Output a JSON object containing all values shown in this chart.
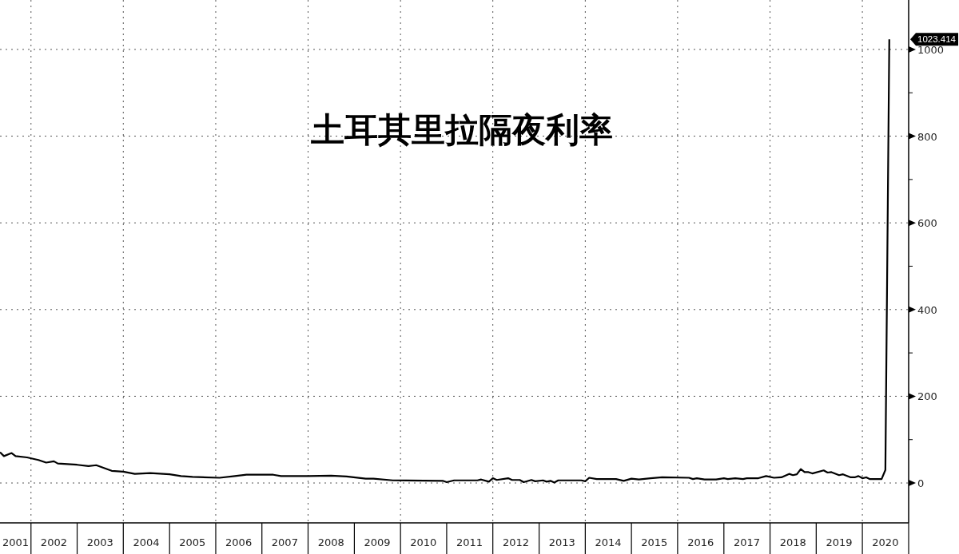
{
  "chart_data": {
    "type": "line",
    "title": "土耳其里拉隔夜利率",
    "x": [
      "2001-05",
      "2001-06",
      "2001-08",
      "2001-09",
      "2001-12",
      "2002-03",
      "2002-05",
      "2002-07",
      "2002-08",
      "2003-01",
      "2003-04",
      "2003-06",
      "2003-10",
      "2004-01",
      "2004-04",
      "2004-08",
      "2005-01",
      "2005-04",
      "2005-07",
      "2006-02",
      "2006-06",
      "2006-09",
      "2007-04",
      "2007-06",
      "2008-01",
      "2008-07",
      "2008-11",
      "2009-04",
      "2009-06",
      "2009-11",
      "2010-12",
      "2011-01",
      "2011-03",
      "2011-09",
      "2011-10",
      "2011-12",
      "2012-01",
      "2012-02",
      "2012-05",
      "2012-06",
      "2012-08",
      "2012-09",
      "2012-11",
      "2012-12",
      "2013-02",
      "2013-03",
      "2013-04",
      "2013-05",
      "2013-06",
      "2013-12",
      "2014-01",
      "2014-02",
      "2014-04",
      "2014-09",
      "2014-11",
      "2015-01",
      "2015-03",
      "2015-06",
      "2015-09",
      "2016-04",
      "2016-05",
      "2016-06",
      "2016-08",
      "2016-11",
      "2017-01",
      "2017-02",
      "2017-04",
      "2017-06",
      "2017-07",
      "2017-10",
      "2017-12",
      "2018-02",
      "2018-04",
      "2018-06",
      "2018-07",
      "2018-08",
      "2018-09",
      "2018-10",
      "2018-11",
      "2018-12",
      "2019-03",
      "2019-04",
      "2019-05",
      "2019-07",
      "2019-08",
      "2019-10",
      "2019-11",
      "2019-12",
      "2020-01",
      "2020-02",
      "2020-03",
      "2020-06",
      "2020-07",
      "2020-08"
    ],
    "series": [
      {
        "color": "#000000",
        "values": [
          71,
          62,
          69,
          62,
          59,
          53,
          47,
          50,
          45,
          42,
          39,
          41,
          28,
          26,
          21,
          23,
          20,
          16,
          14,
          12,
          16,
          19,
          19,
          16,
          16,
          17,
          15,
          10,
          10,
          6,
          5,
          2,
          6,
          6,
          8,
          3,
          11,
          7,
          11,
          7,
          7,
          2,
          7,
          4,
          6,
          3,
          5,
          1,
          6,
          6,
          4,
          12,
          9,
          9,
          5,
          10,
          8,
          11,
          13,
          12,
          9,
          11,
          8,
          8,
          11,
          9,
          11,
          9,
          11,
          11,
          16,
          12,
          13,
          21,
          18,
          20,
          32,
          25,
          25,
          22,
          29,
          24,
          25,
          18,
          20,
          13,
          13,
          16,
          11,
          13,
          9,
          9,
          30,
          1023.414
        ]
      }
    ],
    "annotations": [
      "1023.414"
    ],
    "xlim": [
      "2001-05",
      "2021-01"
    ],
    "xticks": [
      {
        "value": "2001-08",
        "label": "2001"
      },
      {
        "value": "2002-01",
        "label": null
      },
      {
        "value": "2002-07",
        "label": "2002"
      },
      {
        "value": "2003-01",
        "label": null
      },
      {
        "value": "2003-07",
        "label": "2003"
      },
      {
        "value": "2004-01",
        "label": null
      },
      {
        "value": "2004-07",
        "label": "2004"
      },
      {
        "value": "2005-01",
        "label": null
      },
      {
        "value": "2005-07",
        "label": "2005"
      },
      {
        "value": "2006-01",
        "label": null
      },
      {
        "value": "2006-07",
        "label": "2006"
      },
      {
        "value": "2007-01",
        "label": null
      },
      {
        "value": "2007-07",
        "label": "2007"
      },
      {
        "value": "2008-01",
        "label": null
      },
      {
        "value": "2008-07",
        "label": "2008"
      },
      {
        "value": "2009-01",
        "label": null
      },
      {
        "value": "2009-07",
        "label": "2009"
      },
      {
        "value": "2010-01",
        "label": null
      },
      {
        "value": "2010-07",
        "label": "2010"
      },
      {
        "value": "2011-01",
        "label": null
      },
      {
        "value": "2011-07",
        "label": "2011"
      },
      {
        "value": "2012-01",
        "label": null
      },
      {
        "value": "2012-07",
        "label": "2012"
      },
      {
        "value": "2013-01",
        "label": null
      },
      {
        "value": "2013-07",
        "label": "2013"
      },
      {
        "value": "2014-01",
        "label": null
      },
      {
        "value": "2014-07",
        "label": "2014"
      },
      {
        "value": "2015-01",
        "label": null
      },
      {
        "value": "2015-07",
        "label": "2015"
      },
      {
        "value": "2016-01",
        "label": null
      },
      {
        "value": "2016-07",
        "label": "2016"
      },
      {
        "value": "2017-01",
        "label": null
      },
      {
        "value": "2017-07",
        "label": "2017"
      },
      {
        "value": "2018-01",
        "label": null
      },
      {
        "value": "2018-07",
        "label": "2018"
      },
      {
        "value": "2019-01",
        "label": null
      },
      {
        "value": "2019-07",
        "label": "2019"
      },
      {
        "value": "2020-01",
        "label": null
      },
      {
        "value": "2020-07",
        "label": "2020"
      },
      {
        "value": "2021-01",
        "label": null
      }
    ],
    "ylim": [
      -92,
      1114
    ],
    "yticks": [
      0,
      {
        "value": 100,
        "label": null
      },
      200,
      {
        "value": 300,
        "label": null
      },
      400,
      {
        "value": 500,
        "label": null
      },
      600,
      {
        "value": 700,
        "label": null
      },
      800,
      {
        "value": 900,
        "label": null
      },
      1000
    ],
    "grid": true,
    "line_style": "solid"
  }
}
